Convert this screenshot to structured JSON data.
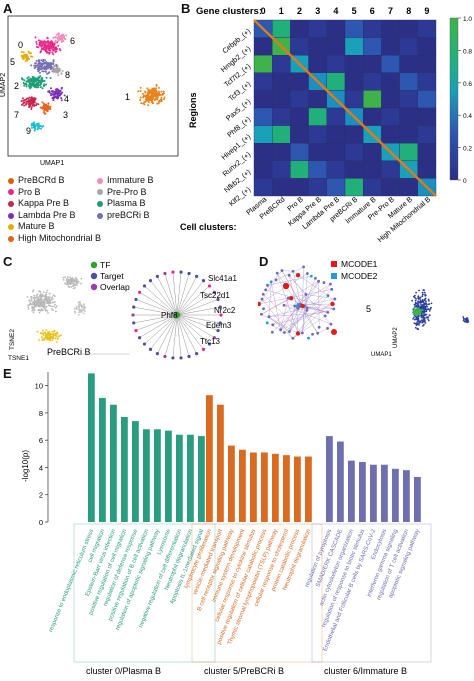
{
  "panels": {
    "a": "A",
    "b": "B",
    "c": "C",
    "d": "D",
    "e": "E"
  },
  "panel_a": {
    "xlabel": "UMAP1",
    "ylabel": "UMAP2",
    "cluster_labels": [
      "0",
      "6",
      "5",
      "8",
      "4",
      "2",
      "7",
      "3",
      "9",
      "1"
    ],
    "legend_left": [
      {
        "label": "PreBCRd B",
        "color": "#d95f02"
      },
      {
        "label": "Pro B",
        "color": "#e7298a"
      },
      {
        "label": "Kappa Pre B",
        "color": "#c7254e"
      },
      {
        "label": "Lambda Pre B",
        "color": "#7b2fb2"
      },
      {
        "label": "Mature B",
        "color": "#e6ab02"
      },
      {
        "label": "High Mitochondrial B",
        "color": "#e8601c"
      }
    ],
    "legend_right": [
      {
        "label": "Immature B",
        "color": "#f08cc0"
      },
      {
        "label": "Pre-Pro B",
        "color": "#a6a6a6"
      },
      {
        "label": "Plasma B",
        "color": "#1b9e77"
      },
      {
        "label": "preBCRi B",
        "color": "#7570b3"
      }
    ]
  },
  "panel_b": {
    "gene_clusters_label": "Gene clusters:",
    "gene_cluster_ids": [
      "0",
      "1",
      "2",
      "3",
      "4",
      "5",
      "6",
      "7",
      "8",
      "9"
    ],
    "regions_label": "Regions",
    "regulons": [
      "Cebpb_(+)",
      "Hmgb2_(+)",
      "Tcf7l2_(+)",
      "Tcf3_(+)",
      "Pax5_(+)",
      "Phf8_(+)",
      "Hivep1_(+)",
      "Runx2_(+)",
      "Nfkb2_(+)",
      "Klf2_(+)"
    ],
    "cell_clusters_label": "Cell clusters:",
    "cell_clusters": [
      "Plasma",
      "PreBCRd",
      "Pro B",
      "Kappa Pre B",
      "Lambda Pre B",
      "preBCRi B",
      "Immature B",
      "Pre-Pro B",
      "Mature B",
      "High Mitochondrial B"
    ],
    "colorbar_ticks": [
      "1.0",
      "0.8",
      "0.6",
      "0.4",
      "0.2",
      "0"
    ]
  },
  "panel_c": {
    "legend": [
      {
        "label": "TF",
        "color": "#2ca02c"
      },
      {
        "label": "Target",
        "color": "#4c4caa"
      },
      {
        "label": "Overlap",
        "color": "#9b3ea8"
      }
    ],
    "tsne_x": "TSNE1",
    "tsne_y": "TSNE2",
    "highlight_label": "PreBCRi B",
    "hub_label": "Phf8",
    "gene_labels": [
      "Slc41a1",
      "Tsc22d1",
      "Nr2c2",
      "Edem3",
      "Ttc13"
    ]
  },
  "panel_d": {
    "legend": [
      {
        "label": "MCODE1",
        "color": "#e31a1c"
      },
      {
        "label": "MCODE2",
        "color": "#1f9fd8"
      }
    ],
    "umap_x": "UMAP1",
    "umap_y": "UMAP2",
    "cluster_label": "5"
  },
  "chart_data": {
    "type": "bar",
    "ylabel": "-log10(p)",
    "ylim": [
      0,
      11
    ],
    "yticks": [
      0,
      2,
      4,
      6,
      8,
      10
    ],
    "groups": [
      {
        "name": "cluster 0/Plasma B",
        "color": "#2a9d80",
        "terms": [
          "response to endoplasmic reticulum stress",
          "cell migration",
          "Epstein-Barr virus infection",
          "positive regulation of cell migration",
          "regulation of defense response",
          "positive regulation of B cell activation",
          "regulation of apoptotic signaling pathway",
          "Lysosome",
          "negative regulation of cell differentiation",
          "Neutrophil degranulation",
          "Apoptosis IL-1mediated signal"
        ],
        "values": [
          10.9,
          9.1,
          8.6,
          7.7,
          7.4,
          6.8,
          6.8,
          6.7,
          6.4,
          6.4,
          6.3
        ]
      },
      {
        "name": "cluster 5/PreBCRi B",
        "color": "#d96a21",
        "terms": [
          "lymphocyte proliferation",
          "vesicle-mediated transport",
          "B cell receptor signaling pathway",
          "immune system development",
          "cellular response to cytokine stimulus",
          "positive regulation of cellular catabolic process",
          "Thymic stromal lymphopoietin (TSLP) pathway",
          "cellular response to cholesterol",
          "protein catabolic process",
          "Neutrophil degranulation"
        ],
        "values": [
          9.3,
          8.6,
          5.6,
          5.3,
          5.1,
          5.1,
          5.0,
          4.9,
          4.8,
          4.8
        ]
      },
      {
        "name": "cluster 6/Immature B",
        "color": "#6f6faf",
        "terms": [
          "regulation of pyroptosis",
          "SMAD/ERK CASCADE",
          "actin cytoskeleton organization",
          "regulation of response to biotic stimulus",
          "Endothelial and Follicular B cells by SARS-CoV-2",
          "Endocytosis",
          "interferon gamma signaling",
          "regulation of T cell activation",
          "apoptotic signaling pathway"
        ],
        "values": [
          6.3,
          5.9,
          4.5,
          4.4,
          4.2,
          4.2,
          3.9,
          3.8,
          3.3
        ]
      }
    ]
  }
}
